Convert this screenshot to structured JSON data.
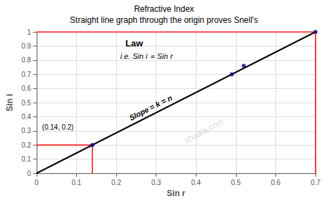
{
  "chart_data": {
    "type": "line",
    "title": "Refractive Index",
    "subtitle": "Straight line graph through the origin proves Snell's",
    "xlabel": "Sin r",
    "ylabel": "Sin i",
    "xlim": [
      0,
      0.7
    ],
    "ylim": [
      0,
      1.0
    ],
    "xticks": [
      0,
      0.1,
      0.2,
      0.3,
      0.4,
      0.5,
      0.6,
      0.7
    ],
    "yticks": [
      0,
      0.1,
      0.2,
      0.3,
      0.4,
      0.5,
      0.6,
      0.7,
      0.8,
      0.9,
      1.0
    ],
    "grid": true,
    "series": [
      {
        "type": "line",
        "color": "#000000",
        "line_style": "solid",
        "x": [
          0,
          0.7
        ],
        "values": [
          0,
          1.0
        ]
      },
      {
        "type": "scatter",
        "color": "#00008B",
        "marker": "circle",
        "x": [
          0.14,
          0.49,
          0.52,
          0.7
        ],
        "values": [
          0.2,
          0.7,
          0.76,
          1.0
        ]
      },
      {
        "type": "line",
        "color": "#FF0000",
        "line_style": "solid",
        "x": [
          0.14,
          0.14,
          0
        ],
        "values": [
          0,
          0.2,
          0.2
        ]
      },
      {
        "type": "line",
        "color": "#FF0000",
        "line_style": "solid",
        "x": [
          0.7,
          0.7,
          0
        ],
        "values": [
          0,
          1.0,
          1.0
        ]
      }
    ],
    "annotations": [
      "(0.14, 0.2)",
      "Slope = k = n",
      "i.e. Sin i ∝ Sin r",
      "shaala.com",
      "Law"
    ]
  }
}
